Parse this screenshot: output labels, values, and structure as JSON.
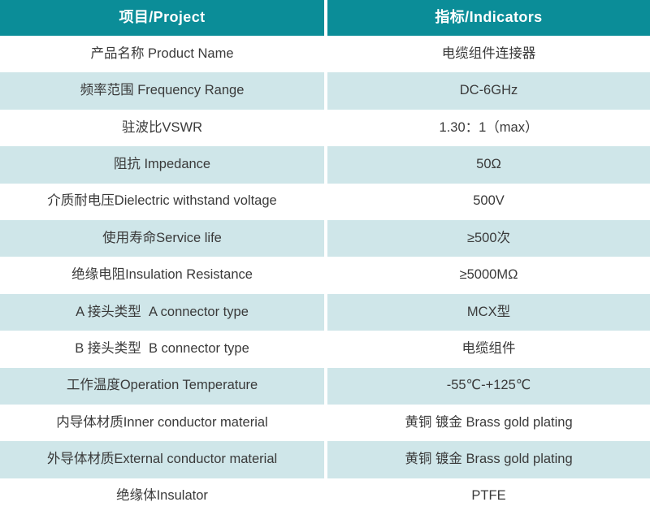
{
  "table": {
    "header": {
      "project_label": "项目/Project",
      "indicators_label": "指标/Indicators"
    },
    "rows": [
      {
        "project": "产品名称 Product Name",
        "indicator": "电缆组件连接器"
      },
      {
        "project": "频率范围 Frequency Range",
        "indicator": "DC-6GHz"
      },
      {
        "project": "驻波比VSWR",
        "indicator": "1.30：1（max）"
      },
      {
        "project": "阻抗 Impedance",
        "indicator": "50Ω"
      },
      {
        "project": "介质耐电压Dielectric withstand voltage",
        "indicator": "500V"
      },
      {
        "project": "使用寿命Service life",
        "indicator": "≥500次"
      },
      {
        "project": "绝缘电阻Insulation Resistance",
        "indicator": "≥5000MΩ"
      },
      {
        "project": "A 接头类型  A connector type",
        "indicator": "MCX型"
      },
      {
        "project": "B 接头类型  B connector type",
        "indicator": "电缆组件"
      },
      {
        "project": "工作温度Operation Temperature",
        "indicator": "-55℃-+125℃"
      },
      {
        "project": "内导体材质Inner conductor material",
        "indicator": "黄铜 镀金 Brass gold plating"
      },
      {
        "project": "外导体材质External conductor material",
        "indicator": "黄铜 镀金 Brass gold plating"
      },
      {
        "project": "绝缘体Insulator",
        "indicator": "PTFE"
      }
    ],
    "colors": {
      "header_bg": "#0b8d98",
      "row_alt_bg": "#cfe6e9",
      "row_bg": "#ffffff",
      "text_color": "#3a3a3a",
      "header_text": "#ffffff",
      "divider": "#ffffff"
    }
  }
}
